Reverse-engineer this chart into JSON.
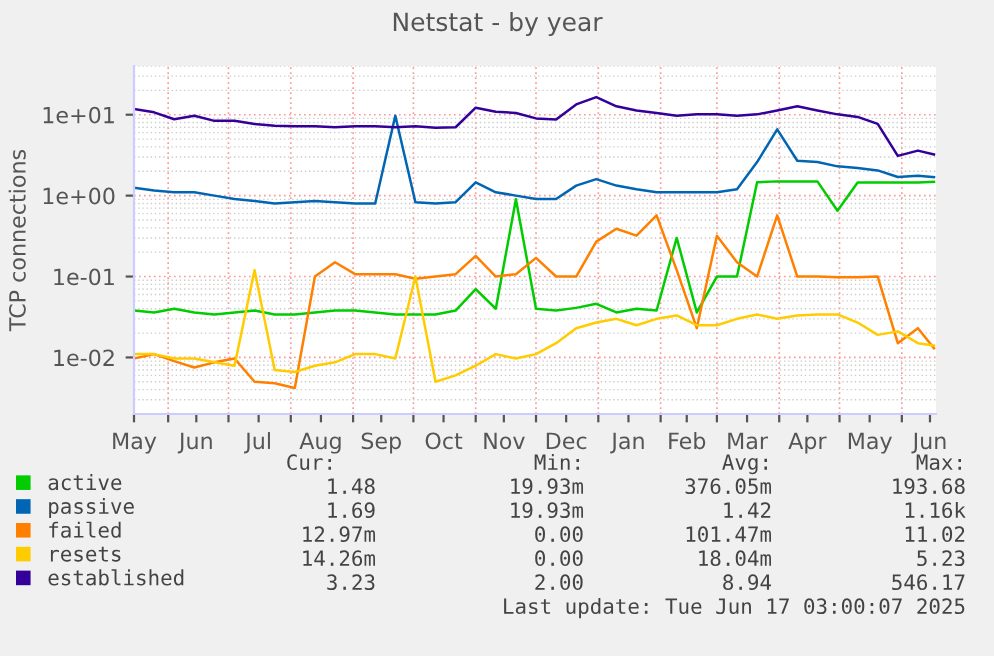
{
  "chart_data": {
    "type": "line",
    "title": "Netstat - by year",
    "ylabel": "TCP connections",
    "x": [
      "2024-05-15",
      "2024-05-25",
      "2024-06-04",
      "2024-06-14",
      "2024-06-24",
      "2024-07-04",
      "2024-07-14",
      "2024-07-24",
      "2024-08-03",
      "2024-08-13",
      "2024-08-23",
      "2024-09-02",
      "2024-09-12",
      "2024-09-22",
      "2024-10-02",
      "2024-10-12",
      "2024-10-22",
      "2024-11-01",
      "2024-11-11",
      "2024-11-21",
      "2024-12-01",
      "2024-12-11",
      "2024-12-21",
      "2024-12-31",
      "2025-01-10",
      "2025-01-20",
      "2025-01-30",
      "2025-02-09",
      "2025-02-19",
      "2025-03-01",
      "2025-03-11",
      "2025-03-21",
      "2025-03-31",
      "2025-04-10",
      "2025-04-20",
      "2025-04-30",
      "2025-05-10",
      "2025-05-20",
      "2025-05-30",
      "2025-06-09",
      "2025-06-17"
    ],
    "series": [
      {
        "name": "active",
        "color": "#00cc00",
        "values": [
          0.038,
          0.036,
          0.04,
          0.036,
          0.034,
          0.036,
          0.038,
          0.034,
          0.034,
          0.036,
          0.038,
          0.038,
          0.036,
          0.034,
          0.034,
          0.034,
          0.038,
          0.07,
          0.04,
          0.9,
          0.04,
          0.038,
          0.041,
          0.046,
          0.036,
          0.04,
          0.038,
          0.3,
          0.036,
          0.1,
          0.1,
          1.46,
          1.5,
          1.5,
          1.5,
          0.65,
          1.45,
          1.45,
          1.45,
          1.45,
          1.48
        ]
      },
      {
        "name": "passive",
        "color": "#0066b3",
        "values": [
          1.25,
          1.16,
          1.1,
          1.1,
          1.0,
          0.91,
          0.86,
          0.8,
          0.83,
          0.86,
          0.83,
          0.8,
          0.8,
          9.7,
          0.83,
          0.8,
          0.83,
          1.46,
          1.1,
          1.0,
          0.91,
          0.91,
          1.33,
          1.6,
          1.33,
          1.2,
          1.1,
          1.1,
          1.1,
          1.1,
          1.2,
          2.6,
          6.6,
          2.7,
          2.6,
          2.3,
          2.2,
          2.05,
          1.7,
          1.76,
          1.69
        ]
      },
      {
        "name": "failed",
        "color": "#ff8000",
        "values": [
          0.0097,
          0.011,
          0.009,
          0.0075,
          0.0087,
          0.0097,
          0.005,
          0.0048,
          0.0042,
          0.1,
          0.15,
          0.107,
          0.107,
          0.107,
          0.094,
          0.1,
          0.107,
          0.18,
          0.1,
          0.107,
          0.17,
          0.1,
          0.1,
          0.27,
          0.39,
          0.32,
          0.57,
          0.12,
          0.023,
          0.32,
          0.15,
          0.1,
          0.57,
          0.1,
          0.1,
          0.098,
          0.098,
          0.1,
          0.015,
          0.023,
          0.013
        ]
      },
      {
        "name": "resets",
        "color": "#ffcc00",
        "values": [
          0.011,
          0.011,
          0.0097,
          0.0097,
          0.0087,
          0.0079,
          0.12,
          0.007,
          0.0066,
          0.0079,
          0.0087,
          0.011,
          0.011,
          0.0097,
          0.1,
          0.005,
          0.006,
          0.0079,
          0.011,
          0.0097,
          0.011,
          0.015,
          0.023,
          0.027,
          0.03,
          0.025,
          0.03,
          0.033,
          0.025,
          0.025,
          0.03,
          0.034,
          0.03,
          0.033,
          0.034,
          0.034,
          0.027,
          0.019,
          0.021,
          0.015,
          0.014
        ]
      },
      {
        "name": "established",
        "color": "#330099",
        "values": [
          11.8,
          10.7,
          8.8,
          9.7,
          8.4,
          8.4,
          7.7,
          7.3,
          7.2,
          7.2,
          7.0,
          7.2,
          7.2,
          7.0,
          7.2,
          6.9,
          7.0,
          12.2,
          10.9,
          10.5,
          9.0,
          8.7,
          13.4,
          16.5,
          12.7,
          11.3,
          10.5,
          9.7,
          10.1,
          10.1,
          9.7,
          10.1,
          11.3,
          12.7,
          11.3,
          10.1,
          9.4,
          7.7,
          3.1,
          3.6,
          3.23
        ]
      }
    ],
    "log": "y",
    "ylim": [
      0.002,
      40
    ],
    "yticks": [
      {
        "value": 0.01,
        "label": "1e-02"
      },
      {
        "value": 0.1,
        "label": "1e-01"
      },
      {
        "value": 1,
        "label": "1e+00"
      },
      {
        "value": 10,
        "label": "1e+01"
      }
    ],
    "xlim": [
      "2024-05-15",
      "2025-06-18"
    ],
    "xticks": [
      {
        "value": "2024-05-15",
        "label": "May"
      },
      {
        "value": "2024-06-01",
        "label": null
      },
      {
        "value": "2024-06-15",
        "label": "Jun"
      },
      {
        "value": "2024-07-01",
        "label": null
      },
      {
        "value": "2024-07-16",
        "label": "Jul"
      },
      {
        "value": "2024-08-01",
        "label": null
      },
      {
        "value": "2024-08-16",
        "label": "Aug"
      },
      {
        "value": "2024-09-01",
        "label": null
      },
      {
        "value": "2024-09-15",
        "label": "Sep"
      },
      {
        "value": "2024-10-01",
        "label": null
      },
      {
        "value": "2024-10-16",
        "label": "Oct"
      },
      {
        "value": "2024-11-01",
        "label": null
      },
      {
        "value": "2024-11-15",
        "label": "Nov"
      },
      {
        "value": "2024-12-01",
        "label": null
      },
      {
        "value": "2024-12-16",
        "label": "Dec"
      },
      {
        "value": "2025-01-01",
        "label": null
      },
      {
        "value": "2025-01-16",
        "label": "Jan"
      },
      {
        "value": "2025-02-01",
        "label": null
      },
      {
        "value": "2025-02-14",
        "label": "Feb"
      },
      {
        "value": "2025-03-01",
        "label": null
      },
      {
        "value": "2025-03-16",
        "label": "Mar"
      },
      {
        "value": "2025-04-01",
        "label": null
      },
      {
        "value": "2025-04-15",
        "label": "Apr"
      },
      {
        "value": "2025-05-01",
        "label": null
      },
      {
        "value": "2025-05-16",
        "label": "May"
      },
      {
        "value": "2025-06-01",
        "label": null
      },
      {
        "value": "2025-06-15",
        "label": "Jun"
      }
    ],
    "grid": true,
    "legend": "bottom",
    "annotations": [
      "Cur:",
      "Min:",
      "Avg:",
      "Max:",
      "1.48",
      "19.93m",
      "376.05m",
      "193.68",
      "1.69",
      "19.93m",
      "1.42",
      "1.16k",
      "12.97m",
      "0.00",
      "101.47m",
      "11.02",
      "14.26m",
      "0.00",
      "18.04m",
      "5.23",
      "3.23",
      "2.00",
      "8.94",
      "546.17",
      "Last update: Tue Jun 17 03:00:07 2025"
    ]
  }
}
